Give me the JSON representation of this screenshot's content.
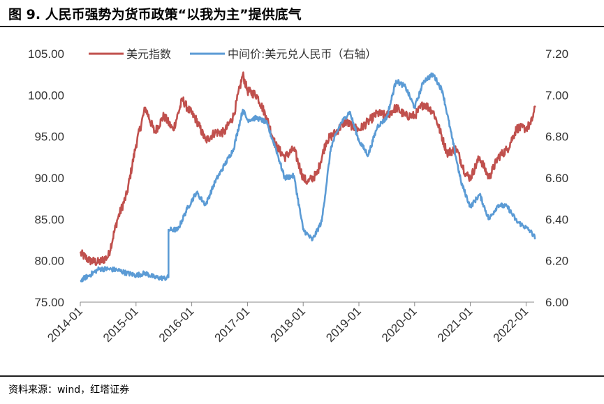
{
  "title": "图 9. 人民币强势为货币政策“以我为主”提供底气",
  "source": "资料来源：wind，红塔证券",
  "chart_data": {
    "type": "line",
    "x_ticks": [
      "2014-01",
      "2015-01",
      "2016-01",
      "2017-01",
      "2018-01",
      "2019-01",
      "2020-01",
      "2021-01",
      "2022-01"
    ],
    "y_left": {
      "ticks": [
        "75.00",
        "80.00",
        "85.00",
        "90.00",
        "95.00",
        "100.00",
        "105.00"
      ],
      "range": [
        75,
        105
      ]
    },
    "y_right": {
      "ticks": [
        "6.00",
        "6.20",
        "6.40",
        "6.60",
        "6.80",
        "7.00",
        "7.20"
      ],
      "range": [
        6.0,
        7.2
      ]
    },
    "grid": false,
    "legend_position": "top",
    "series": [
      {
        "name": "美元指数",
        "axis": "left",
        "color": "#c0504d",
        "points": [
          [
            "2014-01",
            80.9
          ],
          [
            "2014-03",
            80.0
          ],
          [
            "2014-05",
            79.8
          ],
          [
            "2014-07",
            80.5
          ],
          [
            "2014-09",
            85.0
          ],
          [
            "2014-11",
            88.0
          ],
          [
            "2015-01",
            94.0
          ],
          [
            "2015-03",
            98.5
          ],
          [
            "2015-05",
            95.5
          ],
          [
            "2015-07",
            97.5
          ],
          [
            "2015-09",
            95.8
          ],
          [
            "2015-11",
            99.5
          ],
          [
            "2015-12",
            98.5
          ],
          [
            "2016-02",
            97.0
          ],
          [
            "2016-04",
            94.5
          ],
          [
            "2016-06",
            95.5
          ],
          [
            "2016-08",
            95.5
          ],
          [
            "2016-10",
            97.5
          ],
          [
            "2016-12",
            102.5
          ],
          [
            "2017-01",
            100.5
          ],
          [
            "2017-03",
            100.0
          ],
          [
            "2017-05",
            97.5
          ],
          [
            "2017-07",
            94.0
          ],
          [
            "2017-09",
            92.5
          ],
          [
            "2017-11",
            93.5
          ],
          [
            "2018-01",
            90.0
          ],
          [
            "2018-02",
            89.5
          ],
          [
            "2018-04",
            90.5
          ],
          [
            "2018-06",
            94.5
          ],
          [
            "2018-08",
            95.5
          ],
          [
            "2018-10",
            96.8
          ],
          [
            "2019-01",
            95.8
          ],
          [
            "2019-03",
            96.8
          ],
          [
            "2019-05",
            97.8
          ],
          [
            "2019-07",
            97.5
          ],
          [
            "2019-09",
            98.5
          ],
          [
            "2019-11",
            97.5
          ],
          [
            "2020-01",
            97.5
          ],
          [
            "2020-03",
            99.0
          ],
          [
            "2020-05",
            98.0
          ],
          [
            "2020-06",
            96.5
          ],
          [
            "2020-08",
            93.0
          ],
          [
            "2020-10",
            93.5
          ],
          [
            "2020-12",
            90.5
          ],
          [
            "2021-01",
            90.0
          ],
          [
            "2021-03",
            92.5
          ],
          [
            "2021-05",
            90.0
          ],
          [
            "2021-07",
            92.5
          ],
          [
            "2021-09",
            93.5
          ],
          [
            "2021-11",
            96.0
          ],
          [
            "2022-01",
            96.0
          ],
          [
            "2022-02",
            96.5
          ],
          [
            "2022-03",
            98.5
          ]
        ]
      },
      {
        "name": "中间价:美元兑人民币（右轴）",
        "axis": "right",
        "color": "#5b9bd5",
        "points": [
          [
            "2014-01",
            6.105
          ],
          [
            "2014-03",
            6.13
          ],
          [
            "2014-05",
            6.16
          ],
          [
            "2014-07",
            6.16
          ],
          [
            "2014-09",
            6.155
          ],
          [
            "2014-11",
            6.14
          ],
          [
            "2015-01",
            6.13
          ],
          [
            "2015-03",
            6.14
          ],
          [
            "2015-05",
            6.12
          ],
          [
            "2015-07",
            6.115
          ],
          [
            "2015-08",
            6.12
          ],
          [
            "2015-08",
            6.35
          ],
          [
            "2015-10",
            6.35
          ],
          [
            "2015-12",
            6.45
          ],
          [
            "2016-02",
            6.53
          ],
          [
            "2016-04",
            6.47
          ],
          [
            "2016-06",
            6.58
          ],
          [
            "2016-08",
            6.66
          ],
          [
            "2016-10",
            6.74
          ],
          [
            "2016-12",
            6.93
          ],
          [
            "2017-01",
            6.88
          ],
          [
            "2017-03",
            6.89
          ],
          [
            "2017-05",
            6.87
          ],
          [
            "2017-07",
            6.75
          ],
          [
            "2017-09",
            6.6
          ],
          [
            "2017-11",
            6.61
          ],
          [
            "2018-01",
            6.35
          ],
          [
            "2018-03",
            6.3
          ],
          [
            "2018-05",
            6.39
          ],
          [
            "2018-07",
            6.75
          ],
          [
            "2018-09",
            6.86
          ],
          [
            "2018-11",
            6.92
          ],
          [
            "2019-01",
            6.78
          ],
          [
            "2019-03",
            6.71
          ],
          [
            "2019-05",
            6.85
          ],
          [
            "2019-07",
            6.89
          ],
          [
            "2019-09",
            7.07
          ],
          [
            "2019-11",
            7.04
          ],
          [
            "2020-01",
            6.94
          ],
          [
            "2020-03",
            7.07
          ],
          [
            "2020-05",
            7.1
          ],
          [
            "2020-07",
            7.02
          ],
          [
            "2020-09",
            6.8
          ],
          [
            "2020-11",
            6.58
          ],
          [
            "2021-01",
            6.46
          ],
          [
            "2021-03",
            6.52
          ],
          [
            "2021-05",
            6.4
          ],
          [
            "2021-07",
            6.47
          ],
          [
            "2021-09",
            6.46
          ],
          [
            "2021-11",
            6.39
          ],
          [
            "2022-01",
            6.36
          ],
          [
            "2022-02",
            6.34
          ],
          [
            "2022-03",
            6.31
          ]
        ]
      }
    ]
  }
}
